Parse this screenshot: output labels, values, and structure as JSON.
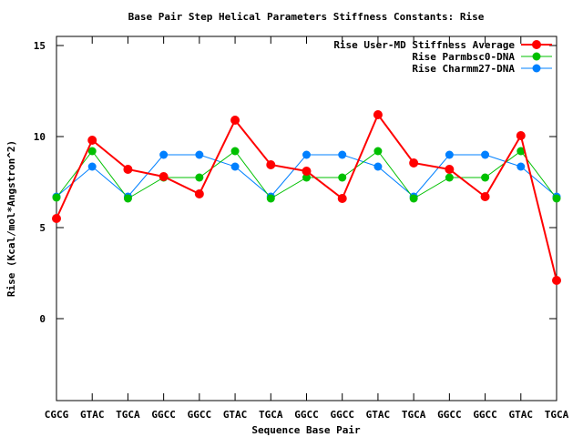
{
  "chart_data": {
    "type": "line",
    "title": "Base Pair Step Helical Parameters Stiffness Constants: Rise",
    "xlabel": "Sequence Base Pair",
    "ylabel": "Rise (Kcal/mol*Angstron^2)",
    "categories": [
      "CGCG",
      "GTAC",
      "TGCA",
      "GGCC",
      "GGCC",
      "GTAC",
      "TGCA",
      "GGCC",
      "GGCC",
      "GTAC",
      "TGCA",
      "GGCC",
      "GGCC",
      "GTAC",
      "TGCA"
    ],
    "ylim": [
      -4.5,
      15.5
    ],
    "yticks": [
      "15",
      "10",
      "5",
      "0"
    ],
    "ytick_values": [
      15,
      10,
      5,
      0
    ],
    "grid": false,
    "legend_position": "top-right",
    "series": [
      {
        "name": "Rise User-MD Stiffness Average",
        "color": "#ff0000",
        "values": [
          5.5,
          9.8,
          8.2,
          7.8,
          6.85,
          10.9,
          8.45,
          8.1,
          6.6,
          11.2,
          8.55,
          8.2,
          6.7,
          10.05,
          2.1
        ]
      },
      {
        "name": "Rise Parmbsc0-DNA",
        "color": "#00c000",
        "values": [
          6.65,
          9.2,
          6.6,
          7.75,
          7.75,
          9.2,
          6.6,
          7.75,
          7.75,
          9.2,
          6.6,
          7.75,
          7.75,
          9.2,
          6.6
        ]
      },
      {
        "name": "Rise Charmm27-DNA",
        "color": "#0080ff",
        "values": [
          6.7,
          8.35,
          6.7,
          9.0,
          9.0,
          8.35,
          6.7,
          9.0,
          9.0,
          8.35,
          6.7,
          9.0,
          9.0,
          8.35,
          6.7
        ]
      }
    ]
  }
}
